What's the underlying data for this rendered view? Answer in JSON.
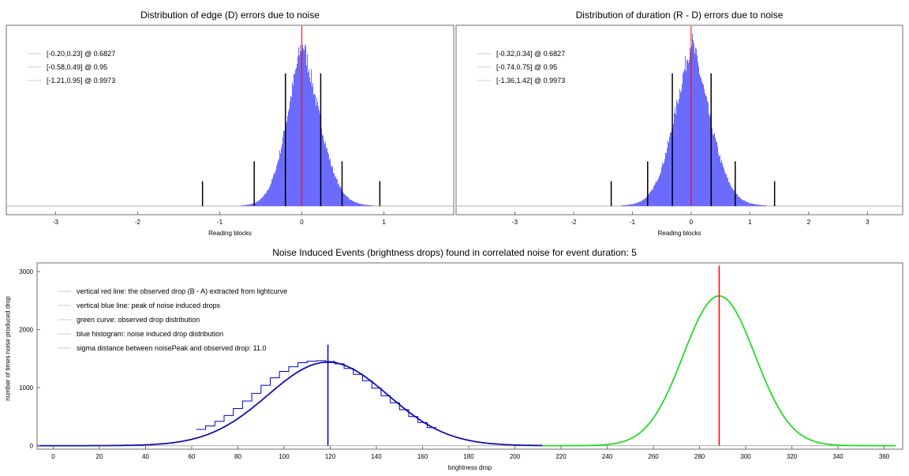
{
  "colors": {
    "histogram_fill": "#6b6bff",
    "histogram_stroke": "#4b4bff",
    "red_line": "#ff0000",
    "bounds": "#000000",
    "blue_curve": "#1010aa",
    "blue_line": "#0000cc",
    "green_curve": "#22dd22",
    "baseline": "#b0b0b0",
    "legend_dash": "#cccccc"
  },
  "chart_data": [
    {
      "type": "histogram",
      "title": "Distribution of edge (D) errors due to noise",
      "xlabel": "Reading blocks",
      "ylabel": "",
      "xlim": [
        -3.6,
        1.85
      ],
      "xticks": [
        -3,
        -2,
        -1,
        0,
        1
      ],
      "grid": false,
      "legend_position": "top-left",
      "legend": [
        "[-0.20,0.23] @ 0.6827",
        "[-0.58,0.49] @ 0.95",
        "[-1.21,0.95] @ 0.9973"
      ],
      "distribution": {
        "center": 0.0,
        "sigma_left": 0.2,
        "sigma_right": 0.23,
        "tail_weight": 0.35
      },
      "intervals": [
        {
          "low": -0.2,
          "high": 0.23,
          "level": 0.6827
        },
        {
          "low": -0.58,
          "high": 0.49,
          "level": 0.95
        },
        {
          "low": -1.21,
          "high": 0.95,
          "level": 0.9973
        }
      ],
      "red_line_x": 0.0
    },
    {
      "type": "histogram",
      "title": "Distribution of duration (R - D) errors due to noise",
      "xlabel": "Reading blocks",
      "ylabel": "",
      "xlim": [
        -4.0,
        3.6
      ],
      "xticks": [
        -3,
        -2,
        -1,
        0,
        1,
        2,
        3
      ],
      "grid": false,
      "legend_position": "top-left",
      "legend": [
        "[-0.32,0.34] @ 0.6827",
        "[-0.74,0.75] @ 0.95",
        "[-1.36,1.42] @ 0.9973"
      ],
      "distribution": {
        "center": 0.0,
        "sigma_left": 0.32,
        "sigma_right": 0.34,
        "tail_weight": 0.35
      },
      "intervals": [
        {
          "low": -0.32,
          "high": 0.34,
          "level": 0.6827
        },
        {
          "low": -0.74,
          "high": 0.75,
          "level": 0.95
        },
        {
          "low": -1.36,
          "high": 1.42,
          "level": 0.9973
        }
      ],
      "red_line_x": 0.0
    },
    {
      "type": "line",
      "title": "Noise Induced Events (brightness drops) found in correlated noise for event duration: 5",
      "xlabel": "brightness drop",
      "ylabel": "number of times noise produced drop",
      "xlim": [
        -7,
        368
      ],
      "ylim": [
        -60,
        3150
      ],
      "xticks": [
        0,
        20,
        40,
        60,
        80,
        100,
        120,
        140,
        160,
        180,
        200,
        220,
        240,
        260,
        280,
        300,
        320,
        340,
        360
      ],
      "yticks": [
        0,
        1000,
        2000,
        3000
      ],
      "grid": false,
      "legend_position": "top-left",
      "legend": [
        "vertical red line: the observed drop (B - A) extracted from lightcurve",
        "vertical blue line: peak of noise induced drops",
        "green curve: observed drop distribution",
        "blue histogram: noise induced drop distribution",
        "sigma distance between noisePeak and observed drop: 11.0"
      ],
      "series": [
        {
          "type": "gaussian",
          "peak_x": 119,
          "sigma": 26,
          "amplitude": 1440,
          "x_range": [
            -7,
            212
          ]
        },
        {
          "type": "gaussian",
          "peak_x": 288.5,
          "sigma": 15.5,
          "amplitude": 2580,
          "x_range": [
            212,
            365
          ]
        },
        {
          "type": "step-histogram",
          "bin_width": 4,
          "bins_x": [
            64,
            68,
            72,
            76,
            80,
            84,
            88,
            92,
            96,
            100,
            104,
            108,
            112,
            116,
            120,
            124,
            128,
            132,
            136,
            140,
            144,
            148,
            152,
            156,
            160,
            164
          ],
          "bins_y": [
            280,
            340,
            420,
            520,
            640,
            770,
            900,
            1040,
            1170,
            1280,
            1360,
            1430,
            1455,
            1465,
            1450,
            1410,
            1330,
            1230,
            1120,
            990,
            860,
            740,
            620,
            500,
            400,
            310
          ]
        }
      ],
      "blue_line": {
        "x": 119,
        "top": 1740
      },
      "red_line": {
        "x": 288.5,
        "top": 3100
      }
    }
  ]
}
